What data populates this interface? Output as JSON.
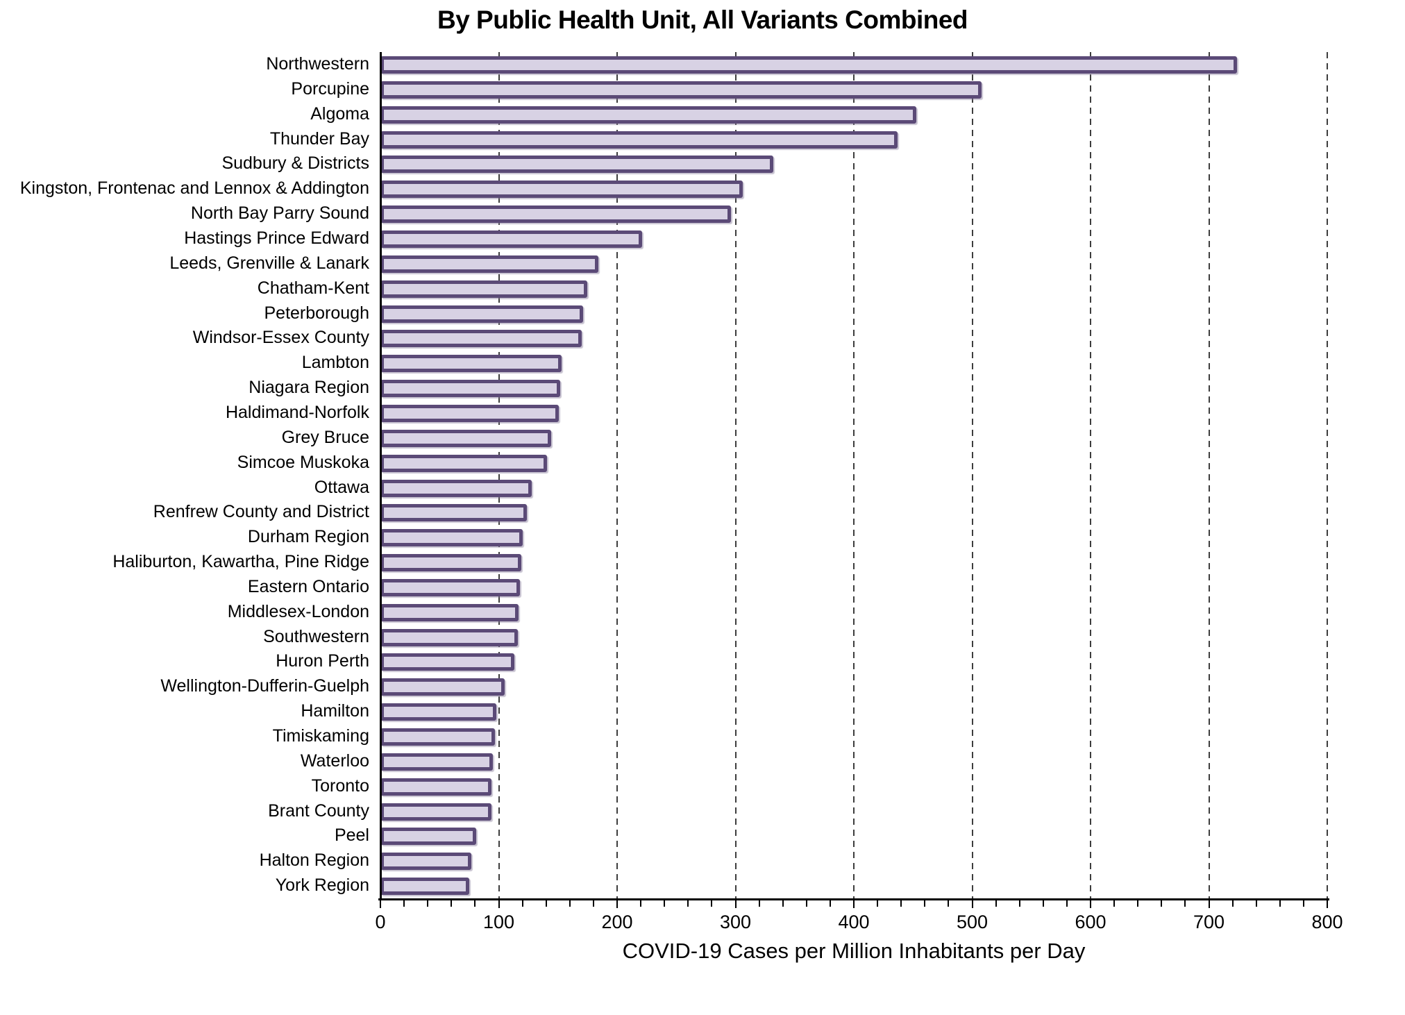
{
  "chart_data": {
    "type": "bar",
    "orientation": "horizontal",
    "title": "By Public Health Unit, All Variants Combined",
    "xlabel": "COVID-19 Cases per Million Inhabitants per Day",
    "ylabel": "",
    "xlim": [
      0,
      800
    ],
    "x_ticks": [
      0,
      100,
      200,
      300,
      400,
      500,
      600,
      700,
      800
    ],
    "minor_tick_step": 20,
    "grid": "vertical-dashed",
    "legend": "none",
    "bar_fill_color": "#d8d2e4",
    "bar_border_color": "#5b4a77",
    "categories": [
      "Northwestern",
      "Porcupine",
      "Algoma",
      "Thunder Bay",
      "Sudbury & Districts",
      "Kingston, Frontenac and Lennox & Addington",
      "North Bay Parry Sound",
      "Hastings Prince Edward",
      "Leeds, Grenville & Lanark",
      "Chatham-Kent",
      "Peterborough",
      "Windsor-Essex County",
      "Lambton",
      "Niagara Region",
      "Haldimand-Norfolk",
      "Grey Bruce",
      "Simcoe Muskoka",
      "Ottawa",
      "Renfrew County and District",
      "Durham Region",
      "Haliburton, Kawartha, Pine Ridge",
      "Eastern Ontario",
      "Middlesex-London",
      "Southwestern",
      "Huron Perth",
      "Wellington-Dufferin-Guelph",
      "Hamilton",
      "Timiskaming",
      "Waterloo",
      "Toronto",
      "Brant County",
      "Peel",
      "Halton Region",
      "York Region"
    ],
    "values": [
      724,
      508,
      453,
      437,
      332,
      306,
      296,
      221,
      184,
      175,
      171,
      170,
      153,
      152,
      151,
      144,
      141,
      128,
      124,
      120,
      119,
      118,
      117,
      116,
      113,
      105,
      98,
      97,
      95,
      94,
      94,
      81,
      77,
      75
    ]
  }
}
